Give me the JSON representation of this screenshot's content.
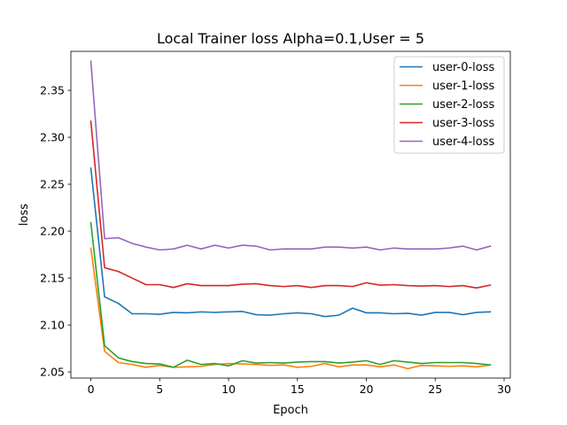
{
  "chart_data": {
    "type": "line",
    "title": "Local Trainer loss Alpha=0.1,User = 5",
    "xlabel": "Epoch",
    "ylabel": "loss",
    "xlim": [
      -1.45,
      30.45
    ],
    "ylim": [
      2.0435,
      2.3915
    ],
    "xticks": [
      0,
      5,
      10,
      15,
      20,
      25,
      30
    ],
    "yticks": [
      2.05,
      2.1,
      2.15,
      2.2,
      2.25,
      2.3,
      2.35
    ],
    "ytick_labels": [
      "2.05",
      "2.10",
      "2.15",
      "2.20",
      "2.25",
      "2.30",
      "2.35"
    ],
    "grid": false,
    "legend_position": "top-right",
    "x": [
      0,
      1,
      2,
      3,
      4,
      5,
      6,
      7,
      8,
      9,
      10,
      11,
      12,
      13,
      14,
      15,
      16,
      17,
      18,
      19,
      20,
      21,
      22,
      23,
      24,
      25,
      26,
      27,
      28,
      29
    ],
    "series": [
      {
        "name": "user-0-loss",
        "color": "#1f77b4",
        "values": [
          2.267,
          2.13,
          2.123,
          2.112,
          2.112,
          2.1115,
          2.1135,
          2.113,
          2.114,
          2.1135,
          2.114,
          2.1145,
          2.111,
          2.1105,
          2.112,
          2.113,
          2.112,
          2.109,
          2.1105,
          2.118,
          2.113,
          2.113,
          2.112,
          2.1125,
          2.1105,
          2.1135,
          2.1135,
          2.111,
          2.1135,
          2.114
        ]
      },
      {
        "name": "user-1-loss",
        "color": "#ff7f0e",
        "values": [
          2.182,
          2.072,
          2.06,
          2.058,
          2.055,
          2.057,
          2.055,
          2.0555,
          2.056,
          2.058,
          2.059,
          2.0585,
          2.058,
          2.057,
          2.0575,
          2.055,
          2.056,
          2.059,
          2.0555,
          2.0575,
          2.0575,
          2.0555,
          2.0575,
          2.0535,
          2.057,
          2.0565,
          2.056,
          2.0565,
          2.0555,
          2.0575
        ]
      },
      {
        "name": "user-2-loss",
        "color": "#2ca02c",
        "values": [
          2.209,
          2.078,
          2.065,
          2.061,
          2.059,
          2.0585,
          2.055,
          2.0625,
          2.058,
          2.059,
          2.0565,
          2.062,
          2.0595,
          2.06,
          2.0595,
          2.0605,
          2.061,
          2.061,
          2.0595,
          2.0605,
          2.062,
          2.058,
          2.062,
          2.0605,
          2.059,
          2.06,
          2.06,
          2.06,
          2.059,
          2.0575
        ]
      },
      {
        "name": "user-3-loss",
        "color": "#d62728",
        "values": [
          2.317,
          2.161,
          2.157,
          2.15,
          2.143,
          2.143,
          2.14,
          2.144,
          2.142,
          2.142,
          2.142,
          2.1435,
          2.144,
          2.142,
          2.141,
          2.142,
          2.14,
          2.142,
          2.142,
          2.141,
          2.145,
          2.1425,
          2.143,
          2.142,
          2.1415,
          2.142,
          2.141,
          2.142,
          2.1395,
          2.1425
        ]
      },
      {
        "name": "user-4-loss",
        "color": "#9467bd",
        "values": [
          2.381,
          2.192,
          2.193,
          2.187,
          2.183,
          2.18,
          2.181,
          2.185,
          2.181,
          2.185,
          2.182,
          2.185,
          2.184,
          2.18,
          2.181,
          2.181,
          2.181,
          2.183,
          2.183,
          2.182,
          2.183,
          2.18,
          2.182,
          2.181,
          2.181,
          2.181,
          2.182,
          2.184,
          2.18,
          2.184
        ]
      }
    ]
  }
}
